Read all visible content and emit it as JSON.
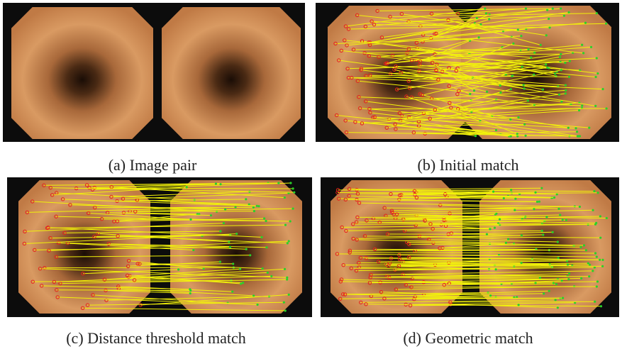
{
  "captions": [
    "(a) Image pair",
    "(b) Initial match",
    "(c) Distance threshold match",
    "(d) Geometric match"
  ]
}
